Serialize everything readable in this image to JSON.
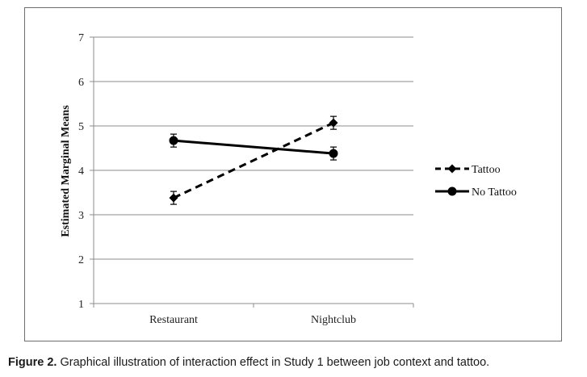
{
  "chart_data": {
    "type": "line",
    "title": "",
    "xlabel": "",
    "ylabel": "Estimated Marginal Means",
    "categories": [
      "Restaurant",
      "Nightclub"
    ],
    "ylim": [
      1,
      7
    ],
    "yticks": [
      "1",
      "2",
      "3",
      "4",
      "5",
      "6",
      "7"
    ],
    "grid": true,
    "legend_position": "right",
    "series": [
      {
        "name": "Tattoo",
        "values": [
          3.38,
          5.07
        ],
        "line_style": "dashed",
        "marker": "diamond",
        "color": "#000000"
      },
      {
        "name": "No Tattoo",
        "values": [
          4.67,
          4.38
        ],
        "line_style": "solid",
        "marker": "circle",
        "color": "#000000"
      }
    ]
  },
  "caption": {
    "label": "Figure 2.",
    "text": "Graphical illustration of interaction effect in Study 1 between job context and tattoo."
  }
}
